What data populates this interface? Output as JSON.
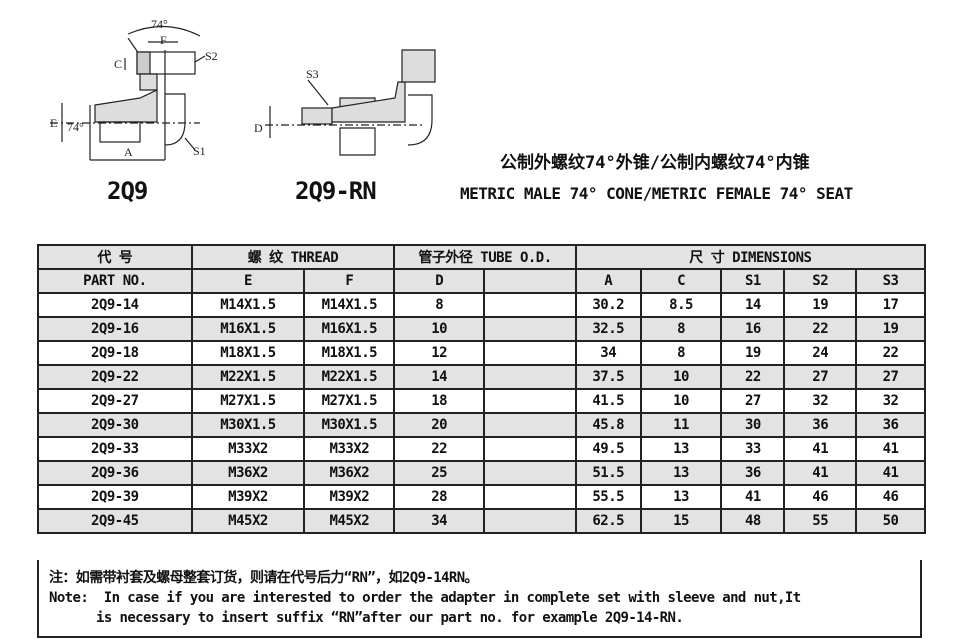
{
  "drawings": [
    {
      "model": "2Q9",
      "labels": {
        "angle_top": "74°",
        "f": "F",
        "s2": "S2",
        "c": "C",
        "e": "E",
        "angle_side": "74°",
        "a": "A",
        "s1": "S1"
      }
    },
    {
      "model": "2Q9-RN",
      "labels": {
        "s3": "S3",
        "d": "D"
      }
    }
  ],
  "title_cn": "公制外螺纹74°外锥/公制内螺纹74°内锥",
  "title_en": "METRIC MALE 74° CONE/METRIC FEMALE 74° SEAT",
  "table": {
    "group_headers": {
      "part": "代 号",
      "thread": "螺 纹   THREAD",
      "tube": "管子外径 TUBE O.D.",
      "dims": "尺 寸    DIMENSIONS"
    },
    "columns": [
      "PART  NO.",
      "E",
      "F",
      "D",
      "",
      "A",
      "C",
      "S1",
      "S2",
      "S3"
    ],
    "rows": [
      [
        "2Q9-14",
        "M14X1.5",
        "M14X1.5",
        "8",
        "",
        "30.2",
        "8.5",
        "14",
        "19",
        "17"
      ],
      [
        "2Q9-16",
        "M16X1.5",
        "M16X1.5",
        "10",
        "",
        "32.5",
        "8",
        "16",
        "22",
        "19"
      ],
      [
        "2Q9-18",
        "M18X1.5",
        "M18X1.5",
        "12",
        "",
        "34",
        "8",
        "19",
        "24",
        "22"
      ],
      [
        "2Q9-22",
        "M22X1.5",
        "M22X1.5",
        "14",
        "",
        "37.5",
        "10",
        "22",
        "27",
        "27"
      ],
      [
        "2Q9-27",
        "M27X1.5",
        "M27X1.5",
        "18",
        "",
        "41.5",
        "10",
        "27",
        "32",
        "32"
      ],
      [
        "2Q9-30",
        "M30X1.5",
        "M30X1.5",
        "20",
        "",
        "45.8",
        "11",
        "30",
        "36",
        "36"
      ],
      [
        "2Q9-33",
        "M33X2",
        "M33X2",
        "22",
        "",
        "49.5",
        "13",
        "33",
        "41",
        "41"
      ],
      [
        "2Q9-36",
        "M36X2",
        "M36X2",
        "25",
        "",
        "51.5",
        "13",
        "36",
        "41",
        "41"
      ],
      [
        "2Q9-39",
        "M39X2",
        "M39X2",
        "28",
        "",
        "55.5",
        "13",
        "41",
        "46",
        "46"
      ],
      [
        "2Q9-45",
        "M45X2",
        "M45X2",
        "34",
        "",
        "62.5",
        "15",
        "48",
        "55",
        "50"
      ]
    ]
  },
  "note": {
    "cn": "注：如需带衬套及螺母整套订货，则请在代号后力“RN”，如2Q9-14RN。",
    "en_line1": "Note:  In case if you are interested to order the adapter in complete set with sleeve and nut,It",
    "en_line2": "is necessary to insert suffix “RN”after our part no. for example 2Q9-14-RN."
  }
}
